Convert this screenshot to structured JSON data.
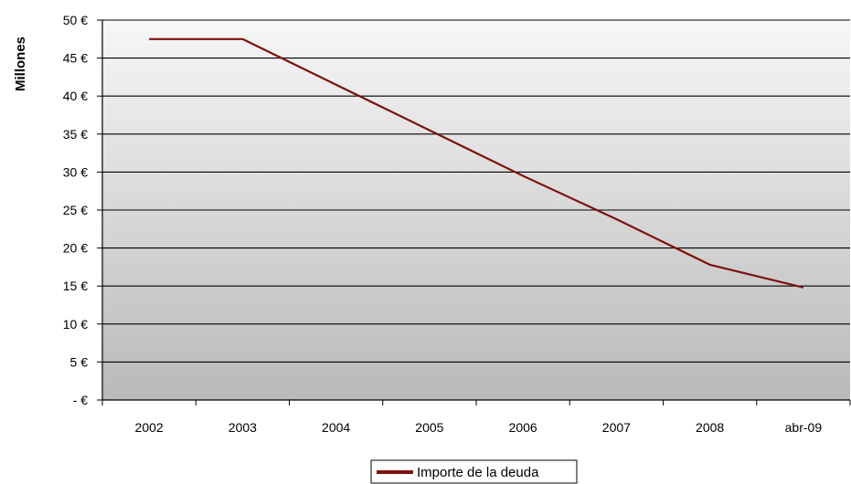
{
  "chart_data": {
    "type": "line",
    "title": "",
    "xlabel": "",
    "ylabel": "Millones",
    "categories": [
      "2002",
      "2003",
      "2004",
      "2005",
      "2006",
      "2007",
      "2008",
      "abr-09"
    ],
    "y_ticks": [
      "- €",
      "5 €",
      "10 €",
      "15 €",
      "20 €",
      "25 €",
      "30 €",
      "35 €",
      "40 €",
      "45 €",
      "50 €"
    ],
    "ylim": [
      0,
      50
    ],
    "y_step": 5,
    "grid": true,
    "legend_position": "bottom",
    "series": [
      {
        "name": "Importe de la deuda",
        "color": "#7f1010",
        "values": [
          47.5,
          47.5,
          41.5,
          35.5,
          29.5,
          23.8,
          17.8,
          14.8
        ]
      }
    ]
  }
}
